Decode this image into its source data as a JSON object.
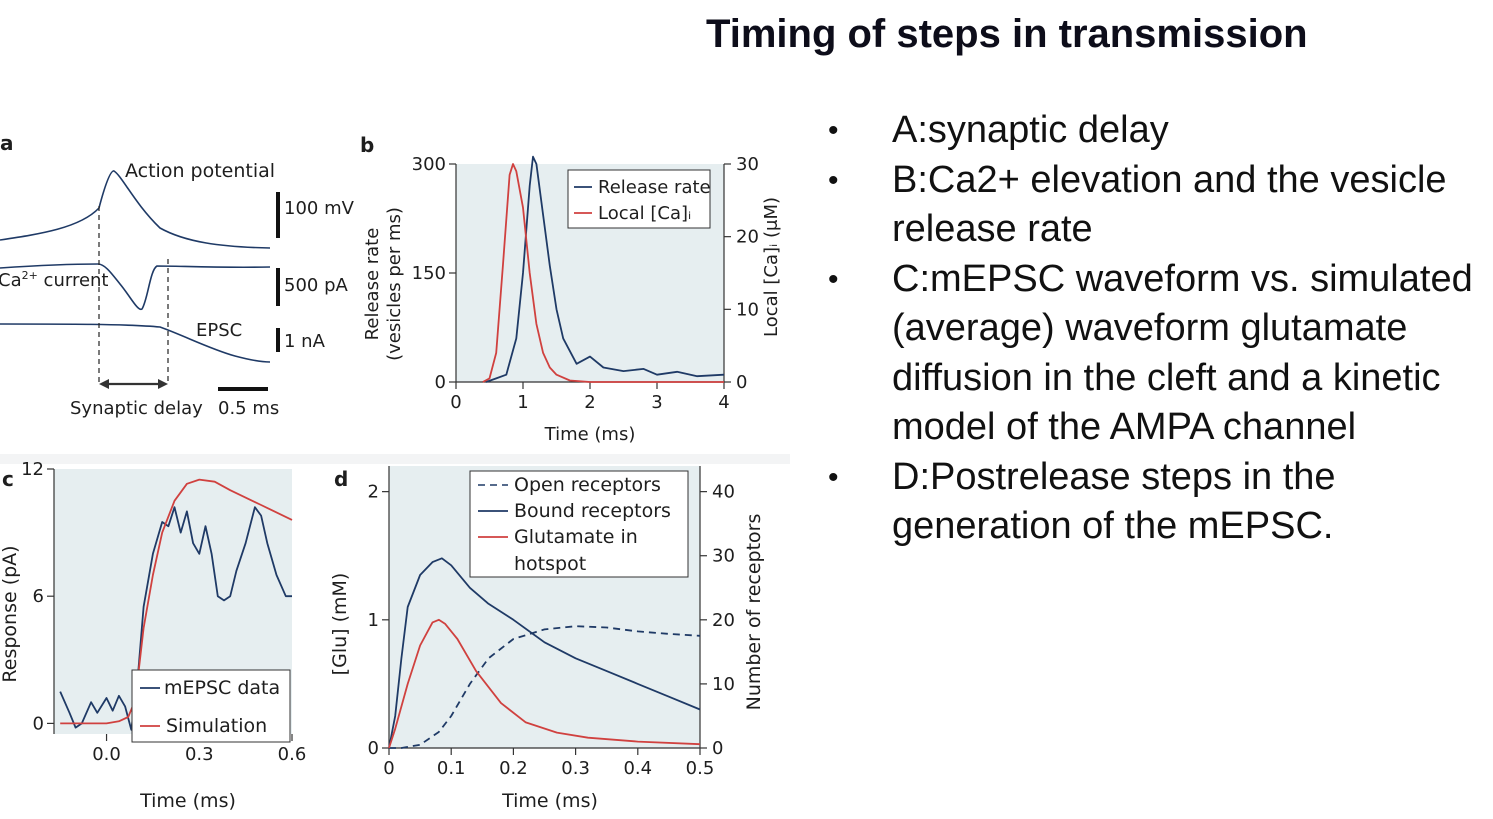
{
  "slide": {
    "title": "Timing of steps in transmission",
    "bullets": [
      "A:synaptic delay",
      "B:Ca2+ elevation and the vesicle release rate",
      "C:mEPSC waveform vs. simulated (average) waveform glutamate diffusion in the cleft and a kinetic model of the AMPA channel",
      "D:Postrelease steps in the generation of the mEPSC."
    ],
    "bullet_glyph": "•"
  },
  "colors": {
    "trace_blue": "#1f3a66",
    "trace_red": "#d0413f",
    "fill": "#e6eef0"
  },
  "chart_data": [
    {
      "panel": "a",
      "type": "line",
      "traces": [
        "Action potential",
        "Ca2+ current",
        "EPSC"
      ],
      "labels": {
        "ap": "Action potential",
        "ca_prefix": "Ca",
        "ca_sup": "2+",
        "ca_suffix": " current",
        "epsc": "EPSC",
        "delay": "Synaptic delay"
      },
      "scale_bars": [
        "100 mV",
        "500 pA",
        "1 nA",
        "0.5 ms"
      ]
    },
    {
      "panel": "b",
      "type": "line",
      "xlabel": "Time (ms)",
      "ylabel": [
        "Release rate",
        "(vesicles per ms)"
      ],
      "y2label": "Local [Ca]ᵢ (μM)",
      "xlim": [
        0,
        4
      ],
      "ylim": [
        0,
        300
      ],
      "y2lim": [
        0,
        30
      ],
      "xticks": [
        0,
        1,
        2,
        3,
        4
      ],
      "yticks": [
        0,
        150,
        300
      ],
      "y2ticks": [
        0,
        10,
        20,
        30
      ],
      "legend": [
        "Release rate",
        "Local [Ca]ᵢ"
      ],
      "series": [
        {
          "name": "Release rate",
          "axis": "left",
          "x": [
            0.45,
            0.6,
            0.75,
            0.9,
            1.0,
            1.1,
            1.15,
            1.2,
            1.3,
            1.4,
            1.5,
            1.6,
            1.8,
            2.0,
            2.2,
            2.5,
            2.8,
            3.0,
            3.3,
            3.6,
            4.0
          ],
          "y": [
            0,
            5,
            10,
            60,
            150,
            270,
            310,
            300,
            230,
            160,
            100,
            60,
            25,
            35,
            20,
            15,
            18,
            10,
            14,
            8,
            10
          ]
        },
        {
          "name": "Local [Ca]ᵢ",
          "axis": "right",
          "x": [
            0.4,
            0.5,
            0.6,
            0.7,
            0.8,
            0.85,
            0.9,
            1.0,
            1.1,
            1.2,
            1.3,
            1.4,
            1.5,
            1.7,
            2.0,
            4.0
          ],
          "y": [
            0,
            0.5,
            4,
            16,
            28.5,
            30,
            29,
            24,
            15,
            8,
            4,
            2,
            1,
            0.2,
            0,
            0
          ]
        }
      ]
    },
    {
      "panel": "c",
      "type": "line",
      "xlabel": "Time (ms)",
      "ylabel": "Response (pA)",
      "xlim": [
        -0.17,
        0.6
      ],
      "ylim": [
        -0.5,
        12
      ],
      "xticks": [
        0.0,
        0.3,
        0.6
      ],
      "xticklabels": [
        "0.0",
        "0.3",
        "0.6"
      ],
      "yticks": [
        0,
        6,
        12
      ],
      "legend": [
        "mEPSC data",
        "Simulation"
      ],
      "series": [
        {
          "name": "mEPSC data",
          "x": [
            -0.15,
            -0.12,
            -0.1,
            -0.08,
            -0.05,
            -0.03,
            0.0,
            0.02,
            0.04,
            0.06,
            0.08,
            0.1,
            0.12,
            0.15,
            0.18,
            0.2,
            0.22,
            0.24,
            0.26,
            0.28,
            0.3,
            0.32,
            0.34,
            0.36,
            0.38,
            0.4,
            0.42,
            0.45,
            0.48,
            0.5,
            0.52,
            0.55,
            0.58,
            0.6
          ],
          "y": [
            1.5,
            0.5,
            -0.2,
            0.0,
            1.0,
            0.5,
            1.2,
            0.6,
            1.3,
            0.8,
            -0.3,
            2.0,
            5.5,
            8.0,
            9.5,
            9.3,
            10.2,
            9.0,
            10.0,
            8.5,
            8.0,
            9.3,
            8.0,
            6.0,
            5.8,
            6.0,
            7.2,
            8.5,
            10.2,
            9.8,
            8.5,
            7.0,
            6.0,
            6.0
          ]
        },
        {
          "name": "Simulation",
          "x": [
            -0.15,
            -0.1,
            0.0,
            0.04,
            0.07,
            0.09,
            0.1,
            0.12,
            0.15,
            0.18,
            0.22,
            0.26,
            0.3,
            0.35,
            0.4,
            0.5,
            0.6
          ],
          "y": [
            0,
            0,
            0,
            0.1,
            0.3,
            1.0,
            2.0,
            4.5,
            7.0,
            9.0,
            10.5,
            11.3,
            11.5,
            11.4,
            11.0,
            10.3,
            9.6
          ]
        }
      ]
    },
    {
      "panel": "d",
      "type": "line",
      "xlabel": "Time (ms)",
      "ylabel": "[Glu] (mM)",
      "y2label": "Number of receptors",
      "xlim": [
        0,
        0.5
      ],
      "ylim": [
        0,
        2.2
      ],
      "y2lim": [
        0,
        44
      ],
      "xticks": [
        0,
        0.1,
        0.2,
        0.3,
        0.4,
        0.5
      ],
      "xticklabels": [
        "0",
        "0.1",
        "0.2",
        "0.3",
        "0.4",
        "0.5"
      ],
      "yticks": [
        0,
        1,
        2
      ],
      "y2ticks": [
        0,
        10,
        20,
        30,
        40
      ],
      "legend": [
        "Open receptors",
        "Bound receptors",
        "Glutamate in",
        "hotspot"
      ],
      "series": [
        {
          "name": "Open receptors",
          "axis": "right",
          "style": "dashed",
          "x": [
            0,
            0.02,
            0.05,
            0.08,
            0.1,
            0.13,
            0.16,
            0.2,
            0.25,
            0.3,
            0.35,
            0.4,
            0.45,
            0.5
          ],
          "y": [
            0,
            0,
            0.5,
            2.5,
            5,
            10,
            14,
            17,
            18.5,
            19,
            18.8,
            18.2,
            17.8,
            17.5
          ]
        },
        {
          "name": "Bound receptors",
          "axis": "right",
          "x": [
            0,
            0.01,
            0.02,
            0.03,
            0.05,
            0.07,
            0.085,
            0.1,
            0.13,
            0.16,
            0.2,
            0.25,
            0.3,
            0.35,
            0.4,
            0.45,
            0.5
          ],
          "y": [
            0,
            5,
            14,
            22,
            27,
            29,
            29.6,
            28.5,
            25,
            22.5,
            20,
            16.5,
            14,
            12,
            10,
            8,
            6
          ]
        },
        {
          "name": "Glutamate in hotspot",
          "axis": "left",
          "x": [
            0,
            0.01,
            0.03,
            0.05,
            0.07,
            0.08,
            0.09,
            0.11,
            0.14,
            0.18,
            0.22,
            0.27,
            0.32,
            0.4,
            0.5
          ],
          "y": [
            0,
            0.15,
            0.5,
            0.8,
            0.98,
            1.0,
            0.97,
            0.85,
            0.6,
            0.35,
            0.2,
            0.12,
            0.08,
            0.05,
            0.03
          ]
        }
      ]
    }
  ]
}
